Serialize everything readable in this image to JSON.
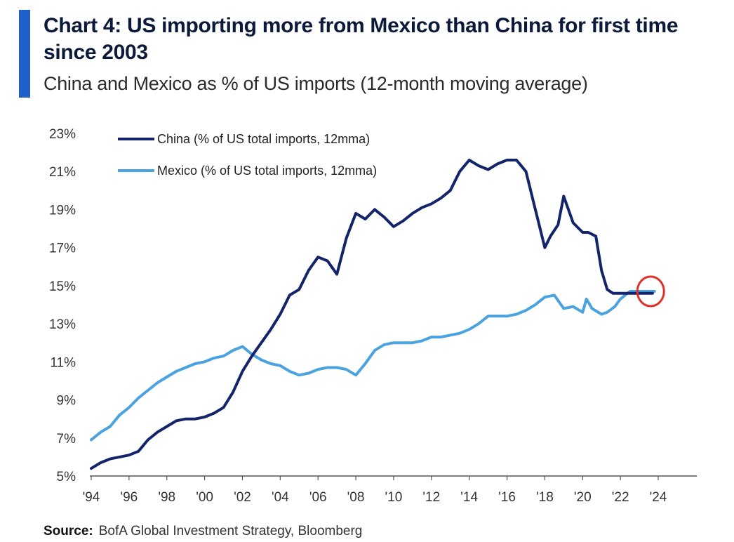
{
  "header": {
    "title": "Chart 4: US importing more from Mexico than China for first time since 2003",
    "subtitle": "China and Mexico as % of US imports (12-month moving average)"
  },
  "source": {
    "label": "Source:",
    "text": "BofA Global Investment Strategy, Bloomberg"
  },
  "colors": {
    "accent": "#1f5fc9",
    "china": "#13246b",
    "mexico": "#4aa3df",
    "highlight": "#e0302b"
  },
  "chart_data": {
    "type": "line",
    "title": "Chart 4: US importing more from Mexico than China for first time since 2003",
    "subtitle": "China and Mexico as % of US imports (12-month moving average)",
    "xlabel": "",
    "ylabel": "",
    "xlim": [
      1994,
      2025.5
    ],
    "ylim": [
      5,
      23
    ],
    "y_ticks": [
      5,
      7,
      9,
      11,
      13,
      15,
      17,
      19,
      21,
      23
    ],
    "y_tick_labels": [
      "5%",
      "7%",
      "9%",
      "11%",
      "13%",
      "15%",
      "17%",
      "19%",
      "21%",
      "23%"
    ],
    "x_ticks": [
      1994,
      1996,
      1998,
      2000,
      2002,
      2004,
      2006,
      2008,
      2010,
      2012,
      2014,
      2016,
      2018,
      2020,
      2022,
      2024
    ],
    "x_tick_labels": [
      "'94",
      "'96",
      "'98",
      "'00",
      "'02",
      "'04",
      "'06",
      "'08",
      "'10",
      "'12",
      "'14",
      "'16",
      "'18",
      "'20",
      "'22",
      "'24"
    ],
    "grid": false,
    "legend_position": "top-left",
    "annotation": "red circle highlighting crossover at end of 2023",
    "annotation_point": [
      2023.6,
      14.7
    ],
    "series": [
      {
        "name": "China (% of US total imports, 12mma)",
        "x": [
          1994,
          1994.5,
          1995,
          1995.5,
          1996,
          1996.5,
          1997,
          1997.5,
          1998,
          1998.5,
          1999,
          1999.5,
          2000,
          2000.5,
          2001,
          2001.5,
          2002,
          2002.5,
          2003,
          2003.5,
          2004,
          2004.5,
          2005,
          2005.5,
          2006,
          2006.5,
          2007,
          2007.5,
          2008,
          2008.5,
          2009,
          2009.5,
          2010,
          2010.5,
          2011,
          2011.5,
          2012,
          2012.5,
          2013,
          2013.5,
          2014,
          2014.5,
          2015,
          2015.5,
          2016,
          2016.5,
          2017,
          2017.5,
          2018,
          2018.3,
          2018.7,
          2019,
          2019.5,
          2020,
          2020.3,
          2020.7,
          2021,
          2021.3,
          2021.6,
          2022,
          2022.5,
          2023,
          2023.5,
          2023.7
        ],
        "values": [
          5.4,
          5.7,
          5.9,
          6.0,
          6.1,
          6.3,
          6.9,
          7.3,
          7.6,
          7.9,
          8.0,
          8.0,
          8.1,
          8.3,
          8.6,
          9.4,
          10.5,
          11.3,
          12.0,
          12.7,
          13.5,
          14.5,
          14.8,
          15.8,
          16.5,
          16.3,
          15.6,
          17.5,
          18.8,
          18.5,
          19.0,
          18.6,
          18.1,
          18.4,
          18.8,
          19.1,
          19.3,
          19.6,
          20.0,
          21.0,
          21.6,
          21.3,
          21.1,
          21.4,
          21.6,
          21.6,
          21.0,
          19.0,
          17.0,
          17.6,
          18.2,
          19.7,
          18.3,
          17.8,
          17.8,
          17.6,
          15.8,
          14.8,
          14.6,
          14.6,
          14.6,
          14.6,
          14.6,
          14.6
        ],
        "color": "#13246b"
      },
      {
        "name": "Mexico (% of US total imports, 12mma)",
        "x": [
          1994,
          1994.5,
          1995,
          1995.5,
          1996,
          1996.5,
          1997,
          1997.5,
          1998,
          1998.5,
          1999,
          1999.5,
          2000,
          2000.5,
          2001,
          2001.5,
          2002,
          2002.5,
          2003,
          2003.5,
          2004,
          2004.5,
          2005,
          2005.5,
          2006,
          2006.5,
          2007,
          2007.5,
          2008,
          2008.5,
          2009,
          2009.5,
          2010,
          2010.5,
          2011,
          2011.5,
          2012,
          2012.5,
          2013,
          2013.5,
          2014,
          2014.5,
          2015,
          2015.5,
          2016,
          2016.5,
          2017,
          2017.5,
          2018,
          2018.5,
          2019,
          2019.5,
          2020,
          2020.2,
          2020.5,
          2021,
          2021.3,
          2021.7,
          2022,
          2022.5,
          2023,
          2023.3,
          2023.6,
          2023.8
        ],
        "values": [
          6.9,
          7.3,
          7.6,
          8.2,
          8.6,
          9.1,
          9.5,
          9.9,
          10.2,
          10.5,
          10.7,
          10.9,
          11.0,
          11.2,
          11.3,
          11.6,
          11.8,
          11.4,
          11.1,
          10.9,
          10.8,
          10.5,
          10.3,
          10.4,
          10.6,
          10.7,
          10.7,
          10.6,
          10.3,
          10.9,
          11.6,
          11.9,
          12.0,
          12.0,
          12.0,
          12.1,
          12.3,
          12.3,
          12.4,
          12.5,
          12.7,
          13.0,
          13.4,
          13.4,
          13.4,
          13.5,
          13.7,
          14.0,
          14.4,
          14.5,
          13.8,
          13.9,
          13.6,
          14.3,
          13.8,
          13.5,
          13.6,
          13.9,
          14.3,
          14.7,
          14.7,
          14.7,
          14.7,
          14.7
        ],
        "color": "#4aa3df"
      }
    ]
  }
}
